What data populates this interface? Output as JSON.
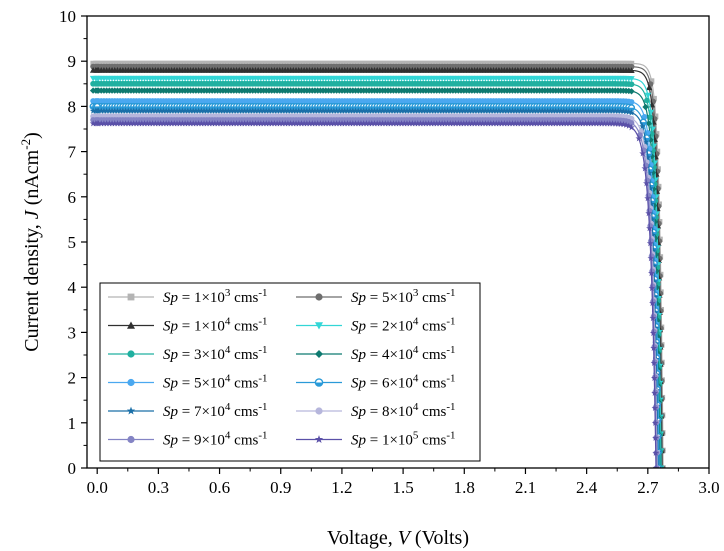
{
  "chart_data": {
    "type": "line",
    "title": "",
    "xlabel": {
      "prefix": "Voltage, ",
      "var": "V",
      "suffix": " (Volts)"
    },
    "ylabel": {
      "prefix": "Current density, ",
      "var": "J",
      "suffix": " (nAcm",
      "sup": "-2",
      "close": ")"
    },
    "xlim": [
      -0.05,
      3.0
    ],
    "ylim": [
      0,
      10
    ],
    "xticks": [
      "0.0",
      "0.3",
      "0.6",
      "0.9",
      "1.2",
      "1.5",
      "1.8",
      "2.1",
      "2.4",
      "2.7",
      "3.0"
    ],
    "yticks": [
      "0",
      "1",
      "2",
      "3",
      "4",
      "5",
      "6",
      "7",
      "8",
      "9",
      "10"
    ],
    "grid": false,
    "legend_position": "bottom-left",
    "legend_prefix": "Sp",
    "legend_unit": "cms",
    "legend_unit_sup": "-1",
    "series": [
      {
        "name": "1×10^3",
        "mant": "1×10",
        "exp": "3",
        "color": "#b4b4b4",
        "marker": "square",
        "jsc": 8.95,
        "voc": 2.775
      },
      {
        "name": "5×10^3",
        "mant": "5×10",
        "exp": "3",
        "color": "#6e6e6e",
        "marker": "circle",
        "jsc": 8.88,
        "voc": 2.772
      },
      {
        "name": "1×10^4",
        "mant": "1×10",
        "exp": "4",
        "color": "#303030",
        "marker": "triangle-up",
        "jsc": 8.8,
        "voc": 2.768
      },
      {
        "name": "2×10^4",
        "mant": "2×10",
        "exp": "4",
        "color": "#33d6d6",
        "marker": "triangle-down",
        "jsc": 8.62,
        "voc": 2.765
      },
      {
        "name": "3×10^4",
        "mant": "3×10",
        "exp": "4",
        "color": "#20b0a0",
        "marker": "circle",
        "jsc": 8.5,
        "voc": 2.762
      },
      {
        "name": "4×10^4",
        "mant": "4×10",
        "exp": "4",
        "color": "#0e7a70",
        "marker": "diamond",
        "jsc": 8.35,
        "voc": 2.758
      },
      {
        "name": "5×10^4",
        "mant": "5×10",
        "exp": "4",
        "color": "#4aa8f0",
        "marker": "circle",
        "jsc": 8.12,
        "voc": 2.755
      },
      {
        "name": "6×10^4",
        "mant": "6×10",
        "exp": "4",
        "color": "#2a9ad8",
        "marker": "half-circle",
        "jsc": 8.0,
        "voc": 2.752
      },
      {
        "name": "7×10^4",
        "mant": "7×10",
        "exp": "4",
        "color": "#1a6fa8",
        "marker": "star",
        "jsc": 7.9,
        "voc": 2.75
      },
      {
        "name": "8×10^4",
        "mant": "8×10",
        "exp": "4",
        "color": "#b6b6dc",
        "marker": "circle",
        "jsc": 7.78,
        "voc": 2.746
      },
      {
        "name": "9×10^4",
        "mant": "9×10",
        "exp": "4",
        "color": "#8484c4",
        "marker": "circle",
        "jsc": 7.7,
        "voc": 2.743
      },
      {
        "name": "1×10^5",
        "mant": "1×10",
        "exp": "5",
        "color": "#5a50a8",
        "marker": "star",
        "jsc": 7.62,
        "voc": 2.74
      }
    ]
  }
}
